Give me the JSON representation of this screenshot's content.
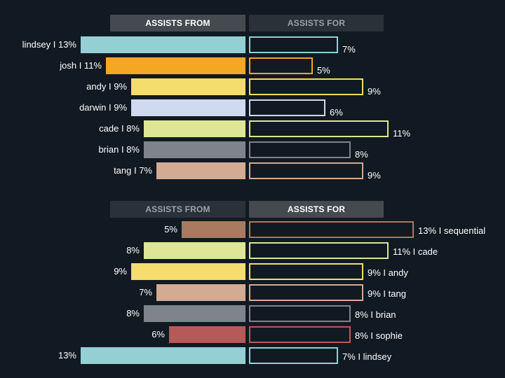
{
  "chart_data": [
    {
      "type": "bar",
      "header_left": "ASSISTS FROM",
      "header_right": "ASSISTS FOR",
      "active_header": "left",
      "rows": [
        {
          "name": "lindsey",
          "from": 13,
          "for": 7,
          "color": "#93cfd3"
        },
        {
          "name": "josh",
          "from": 11,
          "for": 5,
          "color": "#f5a623"
        },
        {
          "name": "andy",
          "from": 9,
          "for": 9,
          "color": "#f5dc6c"
        },
        {
          "name": "darwin",
          "from": 9,
          "for": 6,
          "color": "#cfd9ef"
        },
        {
          "name": "cade",
          "from": 8,
          "for": 11,
          "color": "#dce694"
        },
        {
          "name": "brian",
          "from": 8,
          "for": 8,
          "color": "#7f848c"
        },
        {
          "name": "tang",
          "from": 7,
          "for": 9,
          "color": "#d3aa92"
        }
      ]
    },
    {
      "type": "bar",
      "header_left": "ASSISTS FROM",
      "header_right": "ASSISTS FOR",
      "active_header": "right",
      "rows": [
        {
          "name": "sequential",
          "from": 5,
          "for": 13,
          "color": "#a87a60"
        },
        {
          "name": "cade",
          "from": 8,
          "for": 11,
          "color": "#dce694"
        },
        {
          "name": "andy",
          "from": 9,
          "for": 9,
          "color": "#f5dc6c"
        },
        {
          "name": "tang",
          "from": 7,
          "for": 9,
          "color": "#d3aa92"
        },
        {
          "name": "brian",
          "from": 8,
          "for": 8,
          "color": "#7f848c"
        },
        {
          "name": "sophie",
          "from": 6,
          "for": 8,
          "color": "#b55a58"
        },
        {
          "name": "lindsey",
          "from": 13,
          "for": 7,
          "color": "#93cfd3"
        }
      ]
    }
  ],
  "style": {
    "background": "#111a22",
    "header_active_bg": "#454a50",
    "header_inactive_bg": "#2b3138",
    "header_inactive_text": "#9aa1a8",
    "bar_outline_fill": "#111a22"
  }
}
